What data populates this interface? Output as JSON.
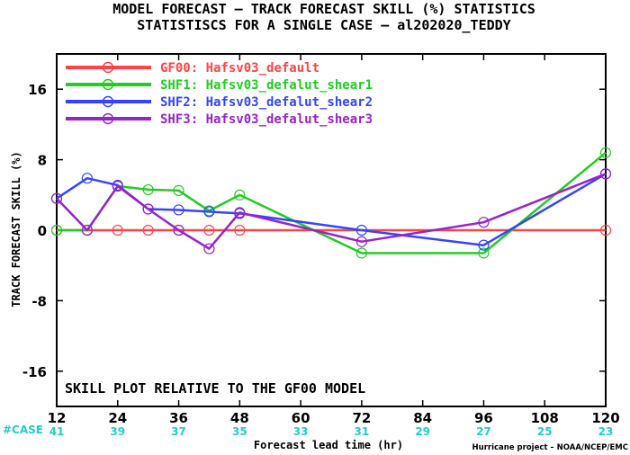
{
  "chart_data": {
    "type": "line",
    "title": "MODEL FORECAST – TRACK FORECAST SKILL (%) STATISTICS",
    "subtitle": "STATISTISCS FOR A SINGLE CASE – al202020_TEDDY",
    "xlabel": "Forecast lead time (hr)",
    "ylabel": "TRACK FORECAST SKILL (%)",
    "xlim": [
      12,
      120
    ],
    "ylim": [
      -20,
      20
    ],
    "x_ticks": [
      12,
      24,
      36,
      48,
      60,
      72,
      84,
      96,
      108,
      120
    ],
    "y_ticks": [
      -16,
      -8,
      0,
      8,
      16
    ],
    "grid": false,
    "legend_position": "top-left",
    "annotation": "SKILL PLOT RELATIVE TO THE GF00 MODEL",
    "case_label": "#CASE",
    "case_x": [
      12,
      24,
      36,
      48,
      60,
      72,
      84,
      96,
      108,
      120
    ],
    "case_counts": [
      41,
      39,
      37,
      35,
      33,
      31,
      29,
      27,
      25,
      23
    ],
    "credit": "Hurricane project – NOAA/NCEP/EMC",
    "series": [
      {
        "name": "GF00: Hafsv03_default",
        "color": "#ff4444",
        "x": [
          12,
          18,
          24,
          30,
          36,
          42,
          48,
          54,
          60,
          66,
          72,
          78,
          84,
          90,
          96,
          102,
          108,
          114,
          120
        ],
        "y": [
          0,
          0,
          0,
          0,
          0,
          0,
          0,
          0,
          0,
          0,
          0,
          0,
          0,
          0,
          0,
          0,
          0,
          0,
          0
        ],
        "markers_x": [
          12,
          18,
          24,
          30,
          36,
          42,
          48,
          120
        ]
      },
      {
        "name": "SHF1: Hafsv03_defalut_shear1",
        "color": "#22cc22",
        "x": [
          12,
          18,
          24,
          30,
          36,
          42,
          48,
          72,
          96,
          120
        ],
        "y": [
          0,
          0,
          5,
          4.6,
          4.5,
          2.2,
          4.0,
          -2.6,
          -2.6,
          8.8
        ],
        "markers_x": [
          12,
          18,
          24,
          30,
          36,
          42,
          48,
          72,
          96,
          120
        ]
      },
      {
        "name": "SHF2: Hafsv03_defalut_shear2",
        "color": "#3344ff",
        "x": [
          12,
          18,
          24,
          30,
          36,
          42,
          48,
          72,
          96,
          120
        ],
        "y": [
          3.6,
          5.9,
          5.1,
          2.4,
          2.3,
          2.1,
          1.9,
          0,
          -1.7,
          6.4
        ],
        "markers_x": [
          12,
          18,
          24,
          30,
          36,
          42,
          48,
          72,
          96,
          120
        ]
      },
      {
        "name": "SHF3: Hafsv03_defalut_shear3",
        "color": "#9922cc",
        "x": [
          12,
          18,
          24,
          30,
          36,
          42,
          48,
          72,
          96,
          120
        ],
        "y": [
          3.6,
          0,
          5.0,
          2.4,
          0,
          -2.1,
          2.0,
          -1.3,
          0.9,
          6.4
        ],
        "markers_x": [
          12,
          18,
          24,
          30,
          36,
          42,
          48,
          72,
          96,
          120
        ]
      }
    ],
    "colors": {
      "case_numbers": "#22cccc",
      "zero_line": "#8b0000",
      "axes": "#000000"
    }
  }
}
